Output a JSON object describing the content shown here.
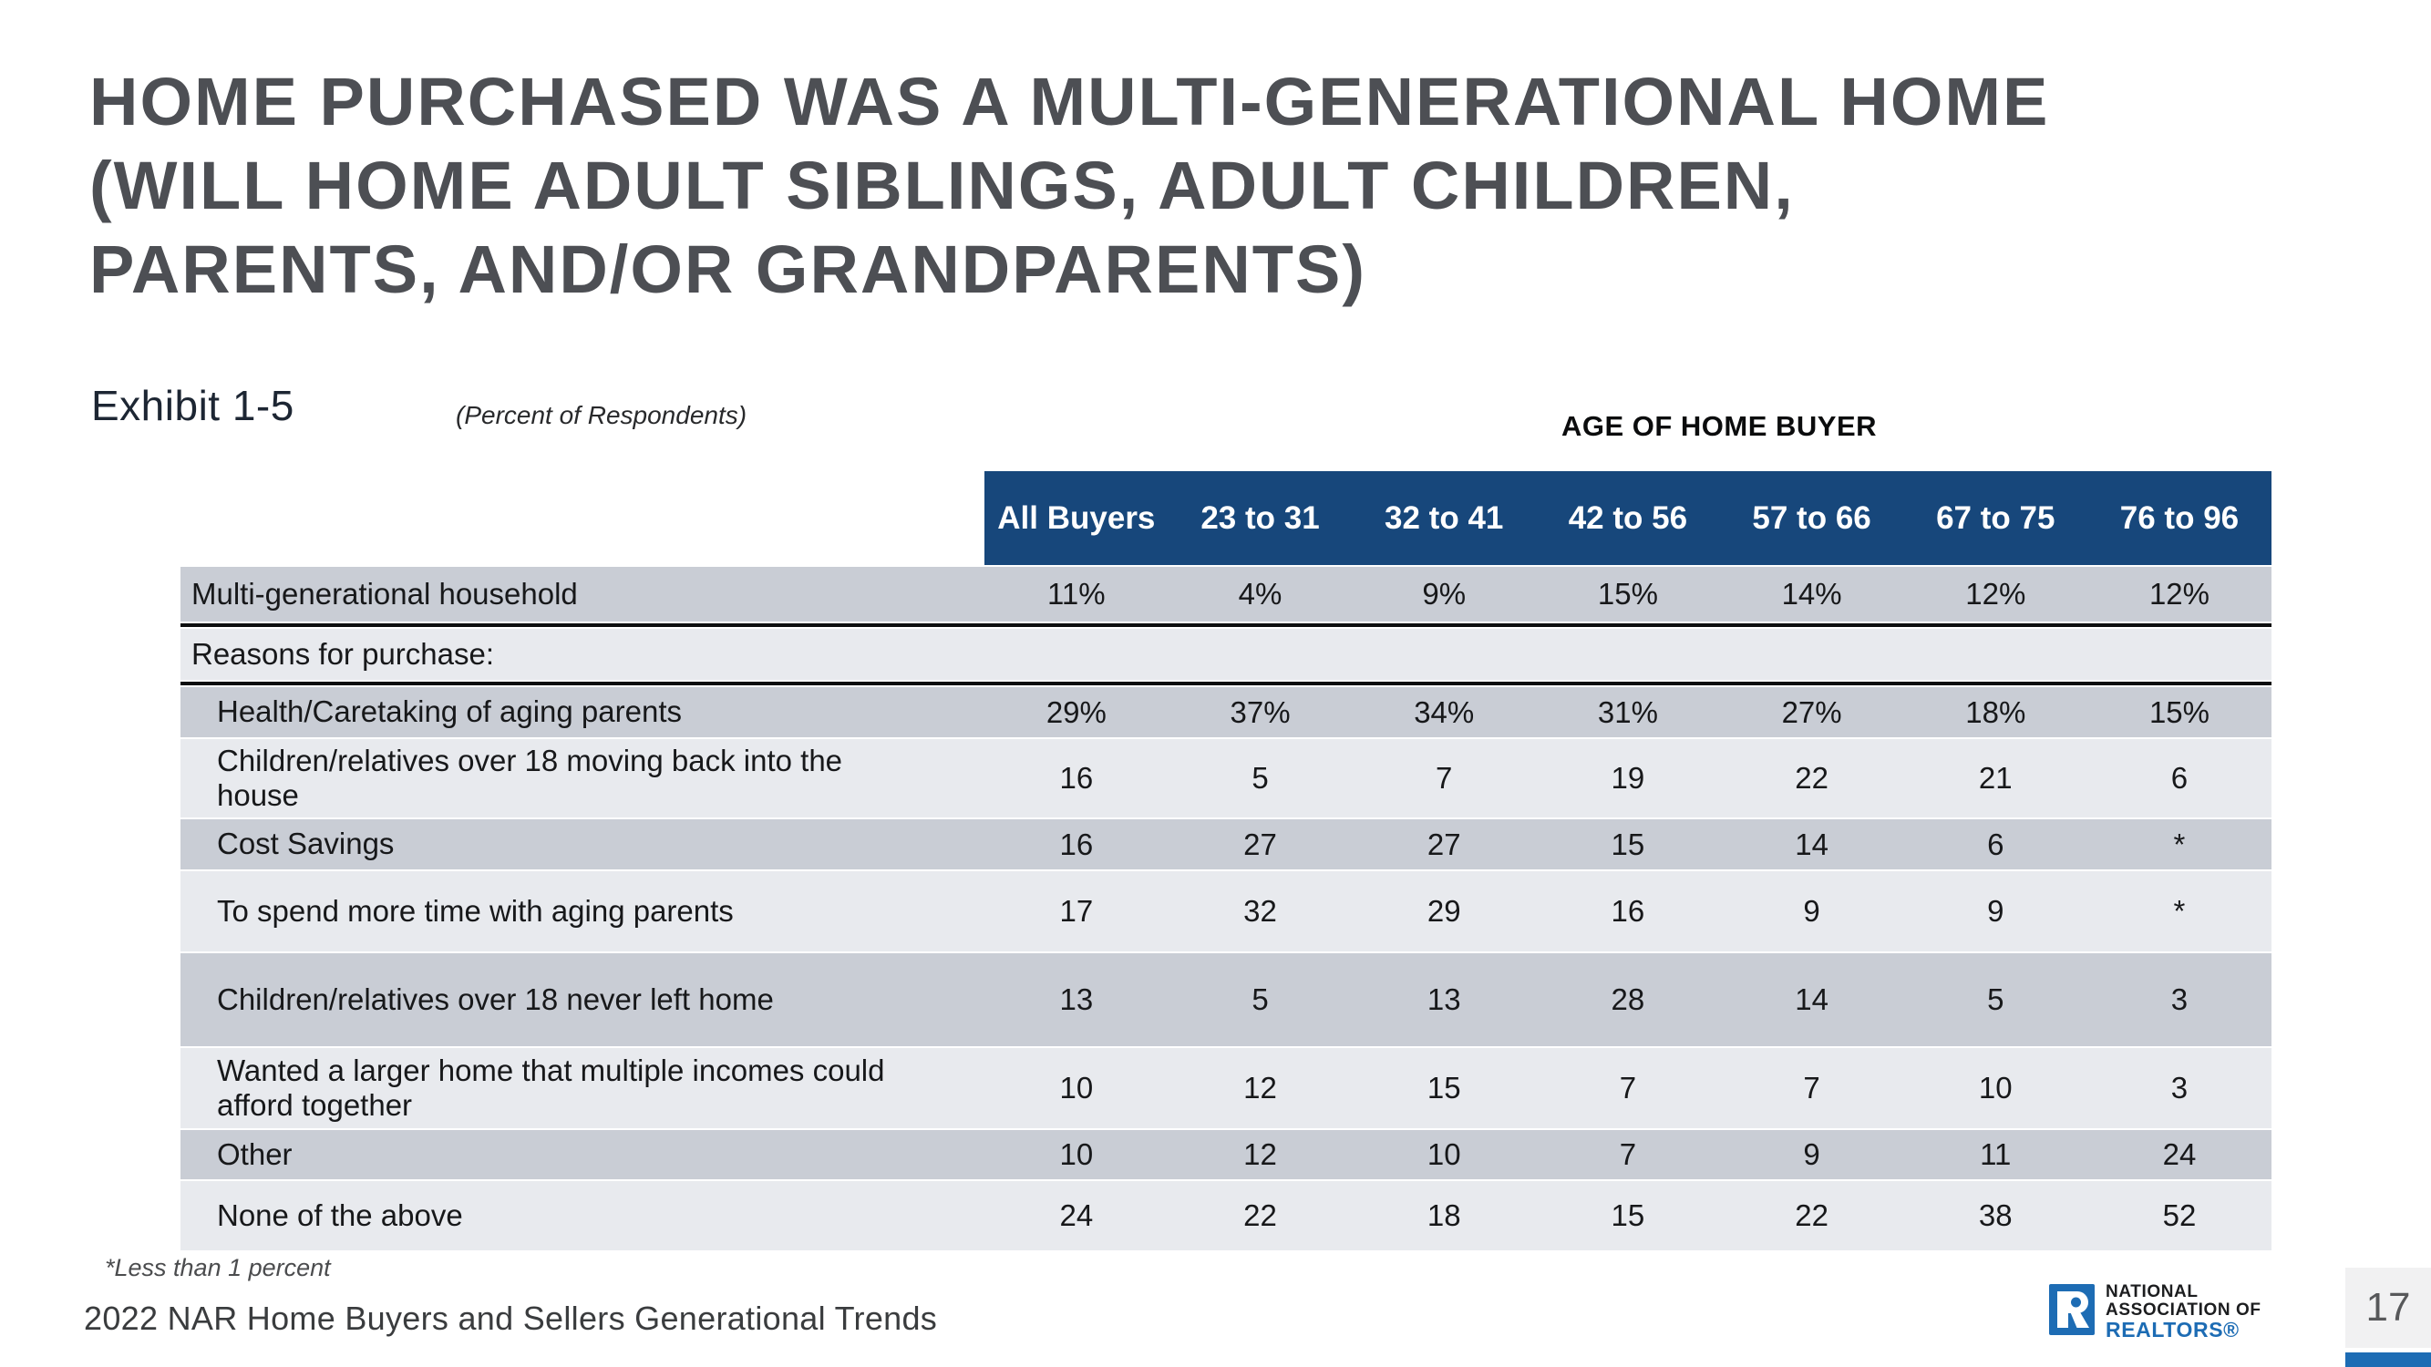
{
  "page": {
    "title": "HOME PURCHASED WAS A MULTI-GENERATIONAL HOME\n(WILL HOME ADULT SIBLINGS, ADULT CHILDREN,\nPARENTS, AND/OR GRANDPARENTS)",
    "exhibit": "Exhibit 1-5",
    "subtitle": "(Percent of Respondents)",
    "footnote": "*Less than 1 percent",
    "source": "2022 NAR Home Buyers and Sellers Generational Trends",
    "page_number": "17"
  },
  "table": {
    "group_header": "AGE OF HOME BUYER",
    "columns": [
      "All Buyers",
      "23 to 31",
      "32 to 41",
      "42 to 56",
      "57 to 66",
      "67 to 75",
      "76 to 96"
    ],
    "rows": [
      {
        "label": "Multi-generational household",
        "values": [
          "11%",
          "4%",
          "9%",
          "15%",
          "14%",
          "12%",
          "12%"
        ]
      },
      {
        "label": "Reasons for purchase:",
        "values": [
          "",
          "",
          "",
          "",
          "",
          "",
          ""
        ]
      },
      {
        "label": "Health/Caretaking of aging parents",
        "values": [
          "29%",
          "37%",
          "34%",
          "31%",
          "27%",
          "18%",
          "15%"
        ]
      },
      {
        "label": "Children/relatives over 18 moving back into the house",
        "values": [
          "16",
          "5",
          "7",
          "19",
          "22",
          "21",
          "6"
        ]
      },
      {
        "label": "Cost Savings",
        "values": [
          "16",
          "27",
          "27",
          "15",
          "14",
          "6",
          "*"
        ]
      },
      {
        "label": "To spend more time with aging parents",
        "values": [
          "17",
          "32",
          "29",
          "16",
          "9",
          "9",
          "*"
        ]
      },
      {
        "label": "Children/relatives over 18 never left home",
        "values": [
          "13",
          "5",
          "13",
          "28",
          "14",
          "5",
          "3"
        ]
      },
      {
        "label": "Wanted a larger home that multiple incomes could afford together",
        "values": [
          "10",
          "12",
          "15",
          "7",
          "7",
          "10",
          "3"
        ]
      },
      {
        "label": "Other",
        "values": [
          "10",
          "12",
          "10",
          "7",
          "9",
          "11",
          "24"
        ]
      },
      {
        "label": "None of the above",
        "values": [
          "24",
          "22",
          "18",
          "15",
          "22",
          "38",
          "52"
        ]
      }
    ]
  },
  "logo": {
    "line1": "NATIONAL",
    "line2": "ASSOCIATION OF",
    "line3": "REALTORS®"
  },
  "colors": {
    "header_bar": "#17477b",
    "row_dark": "#c9cdd5",
    "row_light": "#e8eaee",
    "accent_blue": "#1d6cb4",
    "title_text": "#4d4f54"
  }
}
